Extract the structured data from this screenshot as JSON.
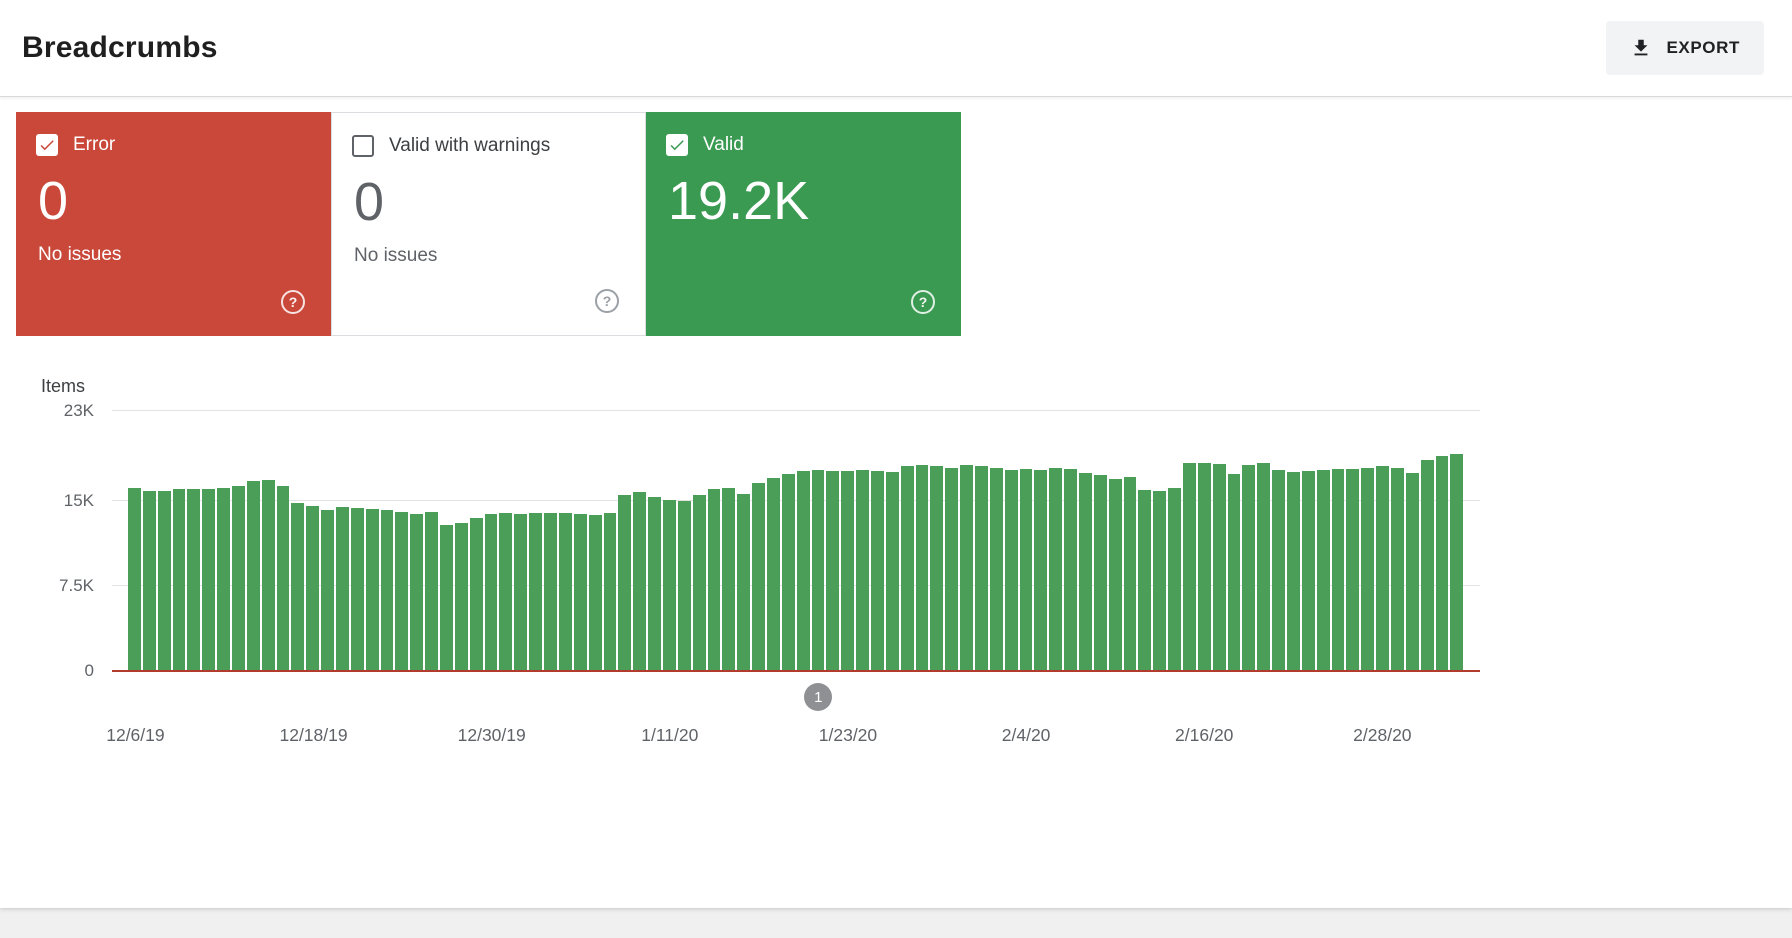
{
  "header": {
    "title": "Breadcrumbs",
    "export_label": "EXPORT"
  },
  "cards": [
    {
      "id": "error",
      "label": "Error",
      "value": "0",
      "subtext": "No issues",
      "checked": true
    },
    {
      "id": "valid-with-warnings",
      "label": "Valid with warnings",
      "value": "0",
      "subtext": "No issues",
      "checked": false
    },
    {
      "id": "valid",
      "label": "Valid",
      "value": "19.2K",
      "checked": true
    }
  ],
  "colors": {
    "error": "#c9483a",
    "valid": "#3a9a52",
    "bar": "#4b9e57",
    "error_line": "#b23b2e",
    "marker": "#8e9093"
  },
  "chart_data": {
    "type": "bar",
    "title": "Items",
    "ylabel": "Items",
    "ylim": [
      0,
      23000
    ],
    "grid": true,
    "legend": "none",
    "yticks": [
      {
        "label": "23K",
        "value": 23000
      },
      {
        "label": "15K",
        "value": 15000
      },
      {
        "label": "7.5K",
        "value": 7500
      },
      {
        "label": "0",
        "value": 0
      }
    ],
    "x_tick_labels": [
      {
        "label": "12/6/19",
        "index": 0
      },
      {
        "label": "12/18/19",
        "index": 12
      },
      {
        "label": "12/30/19",
        "index": 24
      },
      {
        "label": "1/11/20",
        "index": 36
      },
      {
        "label": "1/23/20",
        "index": 48
      },
      {
        "label": "2/4/20",
        "index": 60
      },
      {
        "label": "2/16/20",
        "index": 72
      },
      {
        "label": "2/28/20",
        "index": 84
      }
    ],
    "categories": [
      "12/6/19",
      "12/7/19",
      "12/8/19",
      "12/9/19",
      "12/10/19",
      "12/11/19",
      "12/12/19",
      "12/13/19",
      "12/14/19",
      "12/15/19",
      "12/16/19",
      "12/17/19",
      "12/18/19",
      "12/19/19",
      "12/20/19",
      "12/21/19",
      "12/22/19",
      "12/23/19",
      "12/24/19",
      "12/25/19",
      "12/26/19",
      "12/27/19",
      "12/28/19",
      "12/29/19",
      "12/30/19",
      "12/31/19",
      "1/1/20",
      "1/2/20",
      "1/3/20",
      "1/4/20",
      "1/5/20",
      "1/6/20",
      "1/7/20",
      "1/8/20",
      "1/9/20",
      "1/10/20",
      "1/11/20",
      "1/12/20",
      "1/13/20",
      "1/14/20",
      "1/15/20",
      "1/16/20",
      "1/17/20",
      "1/18/20",
      "1/19/20",
      "1/20/20",
      "1/21/20",
      "1/22/20",
      "1/23/20",
      "1/24/20",
      "1/25/20",
      "1/26/20",
      "1/27/20",
      "1/28/20",
      "1/29/20",
      "1/30/20",
      "1/31/20",
      "2/1/20",
      "2/2/20",
      "2/3/20",
      "2/4/20",
      "2/5/20",
      "2/6/20",
      "2/7/20",
      "2/8/20",
      "2/9/20",
      "2/10/20",
      "2/11/20",
      "2/12/20",
      "2/13/20",
      "2/14/20",
      "2/15/20",
      "2/16/20",
      "2/17/20",
      "2/18/20",
      "2/19/20",
      "2/20/20",
      "2/21/20",
      "2/22/20",
      "2/23/20",
      "2/24/20",
      "2/25/20",
      "2/26/20",
      "2/27/20",
      "2/28/20",
      "2/29/20",
      "3/1/20",
      "3/2/20",
      "3/3/20",
      "3/4/20"
    ],
    "series": [
      {
        "name": "Valid",
        "color": "#4b9e57",
        "values": [
          16200,
          15900,
          15900,
          16100,
          16100,
          16100,
          16200,
          16400,
          16800,
          16900,
          16400,
          14900,
          14600,
          14200,
          14500,
          14400,
          14300,
          14200,
          14100,
          13900,
          14100,
          12900,
          13100,
          13500,
          13900,
          14000,
          13900,
          14000,
          14000,
          14000,
          13900,
          13800,
          14000,
          15600,
          15800,
          15400,
          15100,
          15000,
          15600,
          16100,
          16200,
          15700,
          16600,
          17100,
          17400,
          17700,
          17800,
          17700,
          17700,
          17800,
          17700,
          17600,
          18100,
          18200,
          18100,
          18000,
          18200,
          18100,
          18000,
          17800,
          17900,
          17800,
          18000,
          17900,
          17500,
          17300,
          17000,
          17200,
          16000,
          15900,
          16200,
          18400,
          18400,
          18300,
          17400,
          18200,
          18400,
          17800,
          17600,
          17700,
          17800,
          17900,
          17900,
          18000,
          18100,
          18000,
          17500,
          18700,
          19000,
          19200
        ]
      }
    ],
    "error_series": {
      "name": "Error",
      "value": 0,
      "color": "#b23b2e"
    },
    "annotation_marker": {
      "label": "1",
      "index": 46
    }
  }
}
